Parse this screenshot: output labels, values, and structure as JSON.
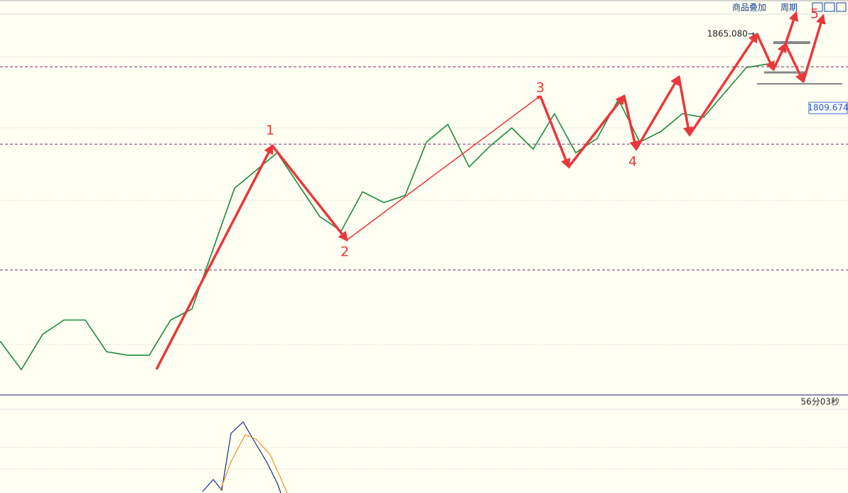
{
  "toolbar": {
    "overlay": "商品叠加",
    "period": "周期"
  },
  "timer": "56分03秒",
  "chart_data": {
    "type": "line",
    "categories": [
      null,
      null,
      null,
      null,
      null,
      null,
      null,
      null,
      null,
      null,
      null,
      null,
      null,
      null,
      null,
      null,
      null,
      null,
      null,
      null,
      null,
      null,
      null,
      null,
      null,
      null,
      null,
      null,
      null,
      null,
      null,
      null,
      null,
      null,
      null,
      null,
      null
    ],
    "values": [
      1634.9,
      1613.5,
      1640.0,
      1650.7,
      1650.7,
      1626.9,
      1624.3,
      1624.3,
      1650.7,
      1658.9,
      1704.2,
      1749.5,
      1762.8,
      1776.1,
      1752.1,
      1728.2,
      1717.5,
      1746.8,
      1738.8,
      1744.1,
      1784.1,
      1797.4,
      1765.5,
      1781.4,
      1794.7,
      1778.8,
      1805.4,
      1776.1,
      1786.8,
      1816.1,
      1784.1,
      1792.1,
      1805.4,
      1802.7,
      1821.4,
      1840.0,
      1842.7
    ],
    "color": "#1f8a3a",
    "ylim": [
      1594.5,
      1880
    ],
    "high_label": {
      "value": 1865.08,
      "label": "1865.080→"
    },
    "last_price": {
      "value": 1809.674,
      "label": "1809.674"
    },
    "wave_labels": [
      "1",
      "2",
      "3",
      "4",
      "5"
    ]
  }
}
